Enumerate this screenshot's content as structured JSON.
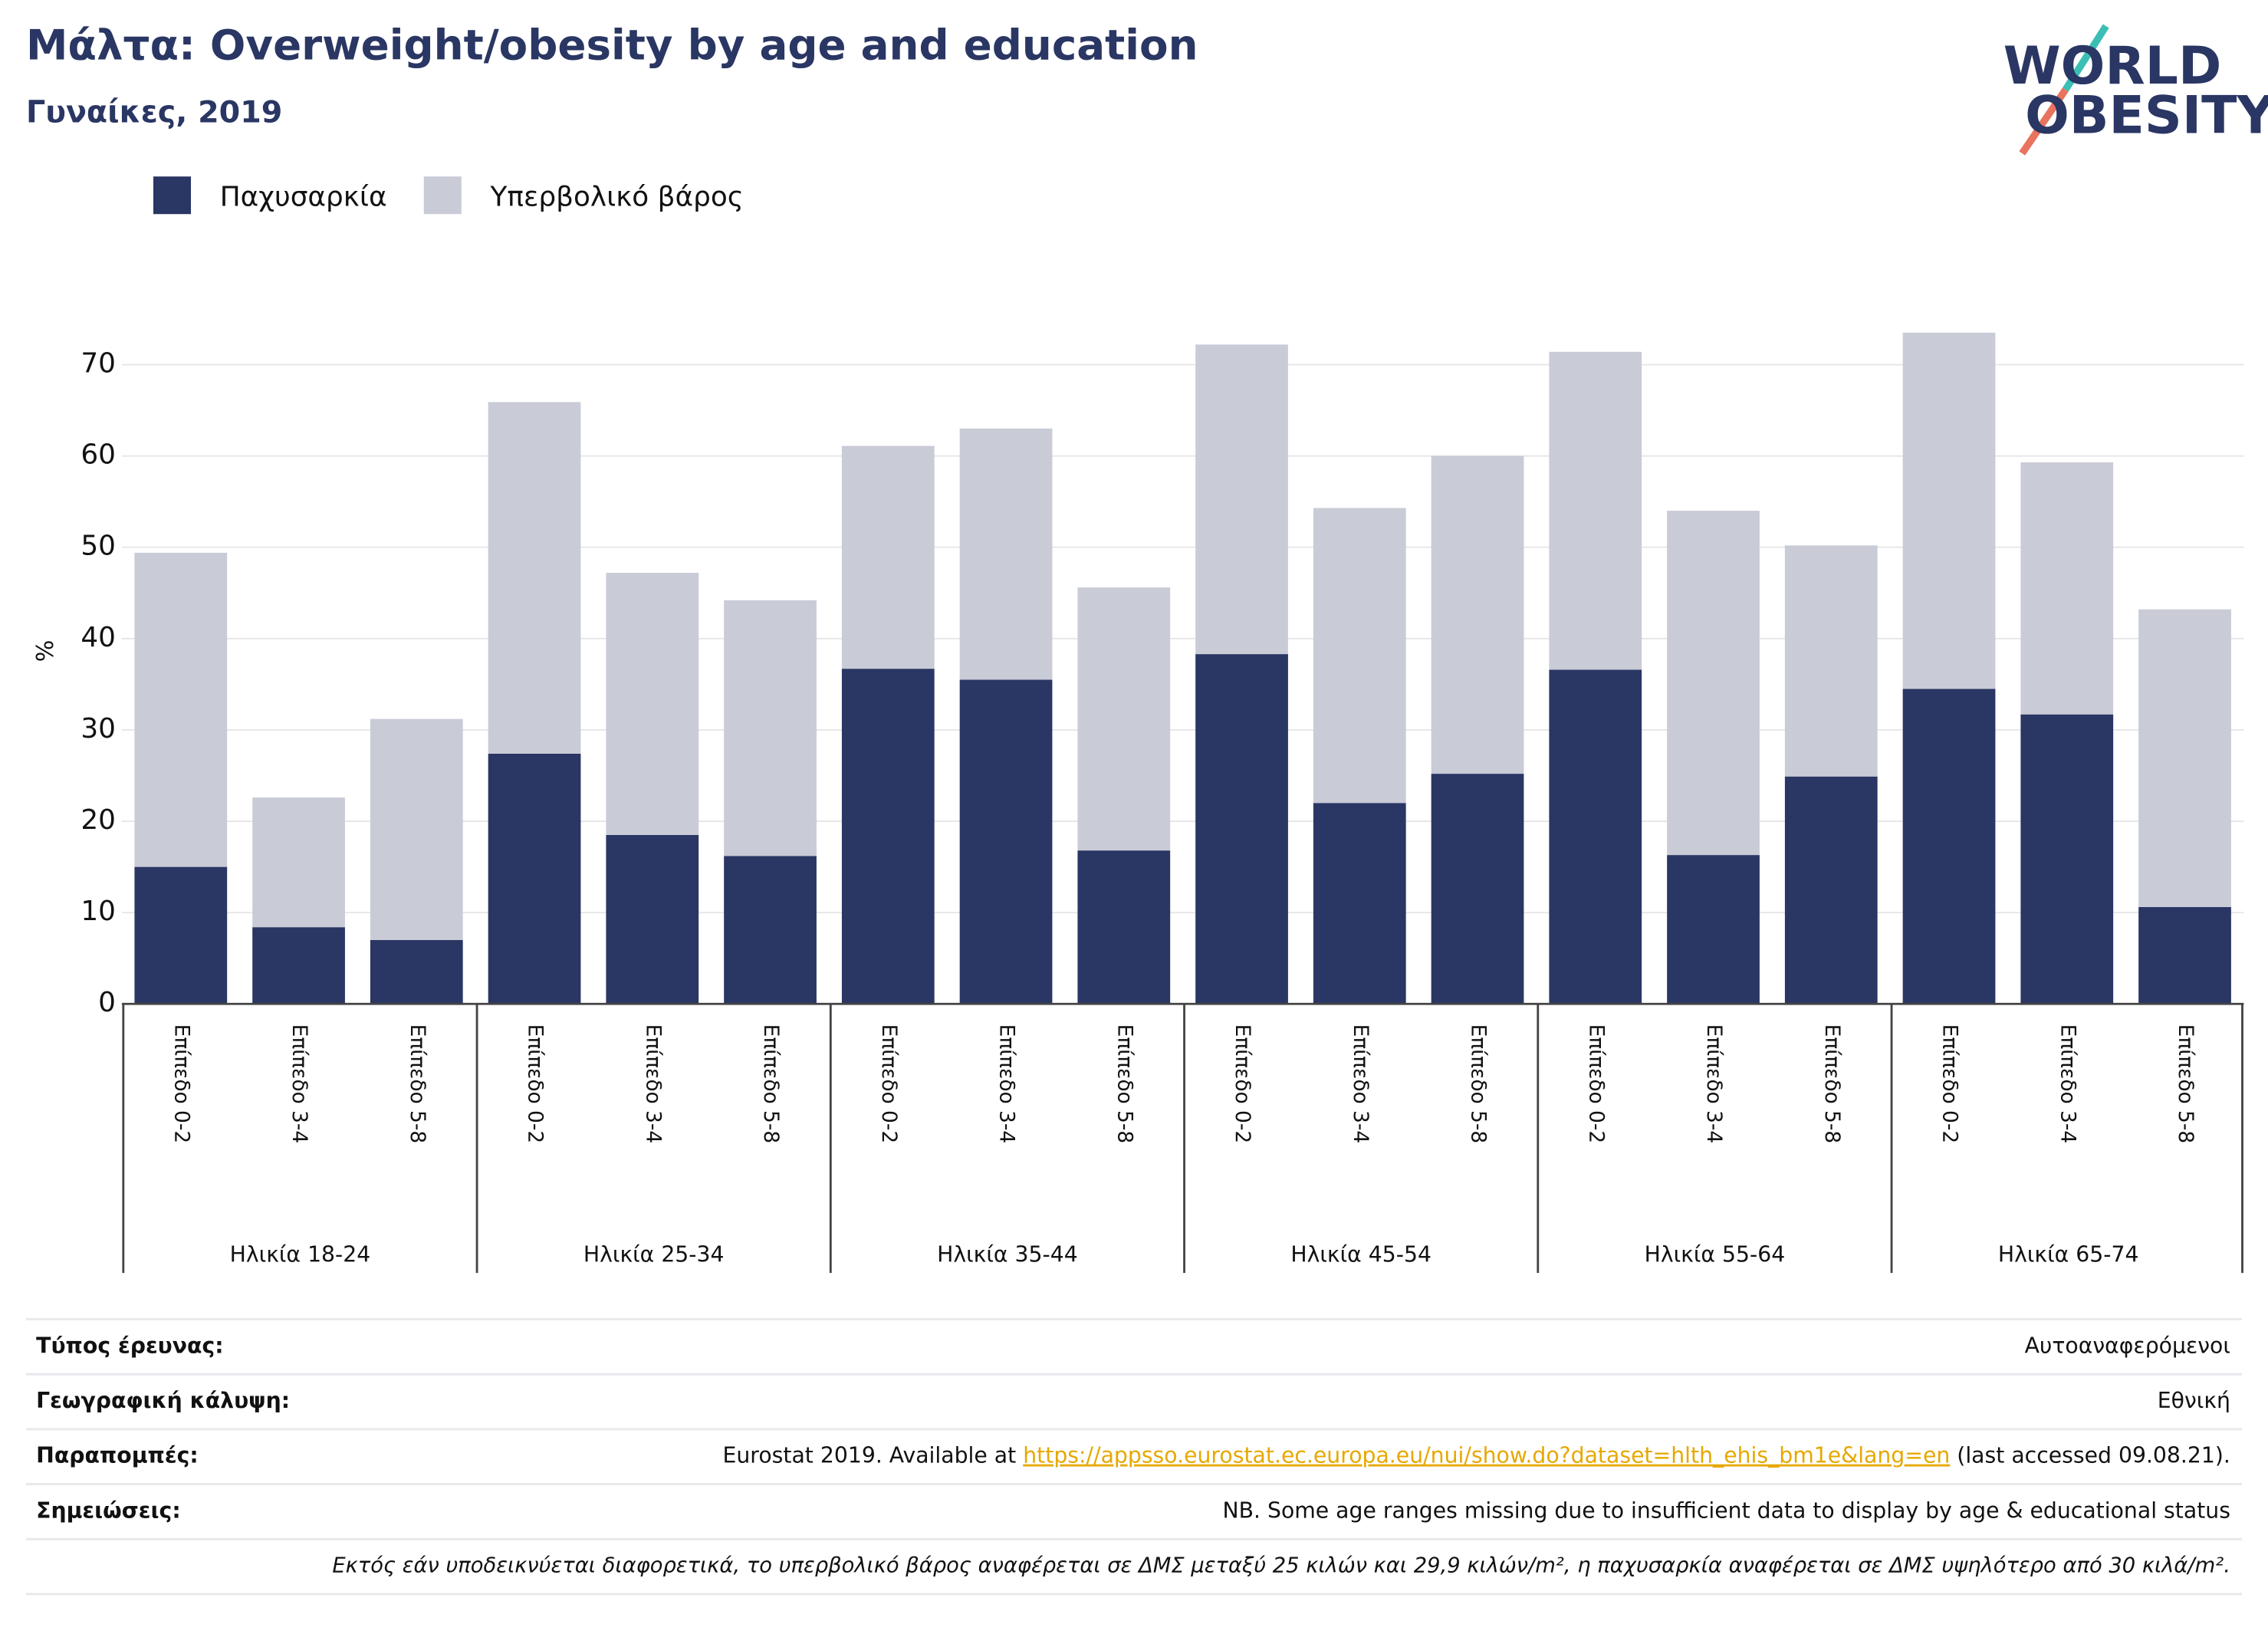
{
  "chart_data": {
    "type": "bar",
    "stacked": true,
    "title": "Μάλτα: Overweight/obesity by age and education",
    "subtitle": "Γυναίκες, 2019",
    "y_label": "%",
    "categories": [
      "Επίπεδο 0-2",
      "Επίπεδο 3-4",
      "Επίπεδο 5-8",
      "Επίπεδο 0-2",
      "Επίπεδο 3-4",
      "Επίπεδο 5-8",
      "Επίπεδο 0-2",
      "Επίπεδο 3-4",
      "Επίπεδο 5-8",
      "Επίπεδο 0-2",
      "Επίπεδο 3-4",
      "Επίπεδο 5-8",
      "Επίπεδο 0-2",
      "Επίπεδο 3-4",
      "Επίπεδο 5-8",
      "Επίπεδο 0-2",
      "Επίπεδο 3-4",
      "Επίπεδο 5-8"
    ],
    "category_groups": [
      "Ηλικία 18-24",
      "Ηλικία 25-34",
      "Ηλικία 35-44",
      "Ηλικία 45-54",
      "Ηλικία 55-64",
      "Ηλικία 65-74"
    ],
    "series": [
      {
        "name": "Παχυσαρκία",
        "color": "#2a3663",
        "values": [
          15.0,
          8.4,
          7.0,
          27.4,
          18.5,
          16.2,
          36.7,
          35.5,
          16.8,
          38.3,
          22.0,
          25.2,
          36.6,
          16.3,
          24.9,
          34.5,
          31.7,
          10.6
        ]
      },
      {
        "name": "Υπερβολικό βάρος",
        "color": "#c9cbd7",
        "values": [
          34.4,
          14.2,
          24.2,
          38.5,
          28.7,
          28.0,
          24.4,
          27.5,
          28.8,
          33.9,
          32.3,
          34.8,
          34.8,
          37.7,
          25.3,
          39.0,
          27.6,
          32.6
        ]
      }
    ],
    "ylim": [
      0,
      75
    ],
    "yticks": [
      0,
      10,
      20,
      30,
      40,
      50,
      60,
      70
    ],
    "grid": true,
    "legend": "top-left"
  },
  "logo": {
    "line1": "WORLD",
    "line2": "OBESITY"
  },
  "footer": {
    "rows": [
      {
        "label": "Τύπος έρευνας:",
        "value": "Αυτοαναφερόμενοι"
      },
      {
        "label": "Γεωγραφική κάλυψη:",
        "value": "Εθνική"
      },
      {
        "label": "Παραπομπές:",
        "value_before": "Eurostat 2019. Available at ",
        "link": "https://appsso.eurostat.ec.europa.eu/nui/show.do?dataset=hlth_ehis_bm1e&lang=en",
        "value_after": " (last accessed 09.08.21)."
      },
      {
        "label": "Σημειώσεις:",
        "value": "NB. Some age ranges missing due to insufficient data to display by age & educational status"
      }
    ],
    "note": "Εκτός εάν υποδεικνύεται διαφορετικά, το υπερβολικό βάρος αναφέρεται σε ΔΜΣ μεταξύ 25 κιλών και 29,9 κιλών/m², η παχυσαρκία αναφέρεται σε ΔΜΣ υψηλότερο από 30 κιλά/m²."
  }
}
